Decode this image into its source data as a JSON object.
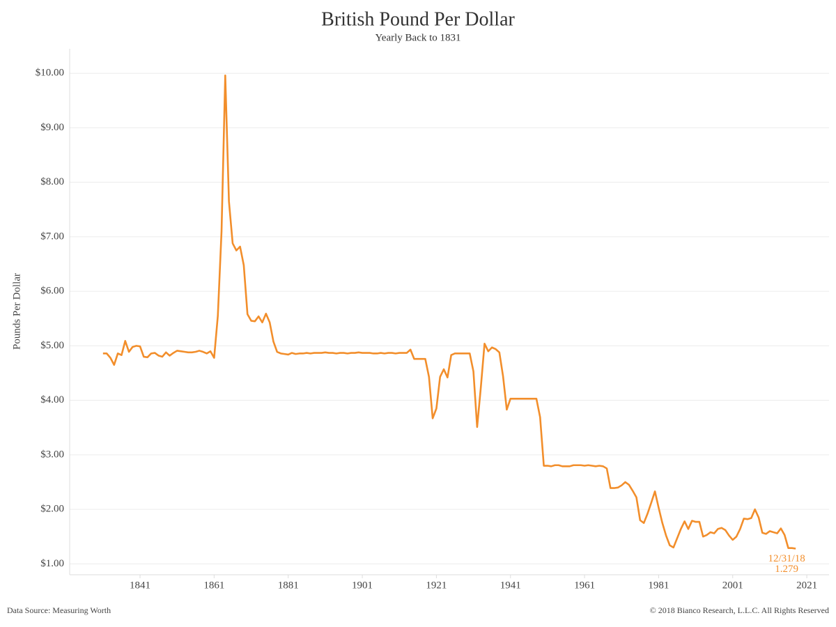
{
  "chart_data": {
    "type": "line",
    "title": "British Pound Per Dollar",
    "subtitle": "Yearly Back to 1831",
    "y_label": "Pounds Per Dollar",
    "source": "Data Source: Measuring Worth",
    "copyright": "© 2018 Bianco Research, L.L.C. All Rights Reserved",
    "annotation": {
      "date": "12/31/18",
      "value": "1.279"
    },
    "xlim": [
      1822,
      2027
    ],
    "xticks": [
      1841,
      1861,
      1881,
      1901,
      1921,
      1941,
      1961,
      1981,
      2001,
      2021
    ],
    "ylim": [
      0.8,
      10.45
    ],
    "yticks": [
      {
        "value": 1,
        "label": "$1.00"
      },
      {
        "value": 2,
        "label": "$2.00"
      },
      {
        "value": 3,
        "label": "$3.00"
      },
      {
        "value": 4,
        "label": "$4.00"
      },
      {
        "value": 5,
        "label": "$5.00"
      },
      {
        "value": 6,
        "label": "$6.00"
      },
      {
        "value": 7,
        "label": "$7.00"
      },
      {
        "value": 8,
        "label": "$8.00"
      },
      {
        "value": 9,
        "label": "$9.00"
      },
      {
        "value": 10,
        "label": "$10.00"
      }
    ],
    "grid": true,
    "x": [
      1831,
      1832,
      1833,
      1834,
      1835,
      1836,
      1837,
      1838,
      1839,
      1840,
      1841,
      1842,
      1843,
      1844,
      1845,
      1846,
      1847,
      1848,
      1849,
      1850,
      1851,
      1852,
      1853,
      1854,
      1855,
      1856,
      1857,
      1858,
      1859,
      1860,
      1861,
      1862,
      1863,
      1864,
      1865,
      1866,
      1867,
      1868,
      1869,
      1870,
      1871,
      1872,
      1873,
      1874,
      1875,
      1876,
      1877,
      1878,
      1879,
      1880,
      1881,
      1882,
      1883,
      1884,
      1885,
      1886,
      1887,
      1888,
      1889,
      1890,
      1891,
      1892,
      1893,
      1894,
      1895,
      1896,
      1897,
      1898,
      1899,
      1900,
      1901,
      1902,
      1903,
      1904,
      1905,
      1906,
      1907,
      1908,
      1909,
      1910,
      1911,
      1912,
      1913,
      1914,
      1915,
      1916,
      1917,
      1918,
      1919,
      1920,
      1921,
      1922,
      1923,
      1924,
      1925,
      1926,
      1927,
      1928,
      1929,
      1930,
      1931,
      1932,
      1933,
      1934,
      1935,
      1936,
      1937,
      1938,
      1939,
      1940,
      1941,
      1942,
      1943,
      1944,
      1945,
      1946,
      1947,
      1948,
      1949,
      1950,
      1951,
      1952,
      1953,
      1954,
      1955,
      1956,
      1957,
      1958,
      1959,
      1960,
      1961,
      1962,
      1963,
      1964,
      1965,
      1966,
      1967,
      1968,
      1969,
      1970,
      1971,
      1972,
      1973,
      1974,
      1975,
      1976,
      1977,
      1978,
      1979,
      1980,
      1981,
      1982,
      1983,
      1984,
      1985,
      1986,
      1987,
      1988,
      1989,
      1990,
      1991,
      1992,
      1993,
      1994,
      1995,
      1996,
      1997,
      1998,
      1999,
      2000,
      2001,
      2002,
      2003,
      2004,
      2005,
      2006,
      2007,
      2008,
      2009,
      2010,
      2011,
      2012,
      2013,
      2014,
      2015,
      2016,
      2017,
      2018
    ],
    "series": [
      {
        "name": "British Pound Per Dollar",
        "color": "#f28e2b",
        "values": [
          4.86,
          4.86,
          4.78,
          4.65,
          4.86,
          4.83,
          5.09,
          4.89,
          4.98,
          5.0,
          4.99,
          4.8,
          4.79,
          4.86,
          4.87,
          4.82,
          4.8,
          4.88,
          4.82,
          4.87,
          4.91,
          4.9,
          4.89,
          4.88,
          4.88,
          4.89,
          4.91,
          4.89,
          4.86,
          4.9,
          4.78,
          5.55,
          7.1,
          9.96,
          7.65,
          6.88,
          6.75,
          6.82,
          6.48,
          5.58,
          5.46,
          5.45,
          5.54,
          5.43,
          5.59,
          5.43,
          5.08,
          4.89,
          4.86,
          4.85,
          4.84,
          4.87,
          4.85,
          4.86,
          4.86,
          4.87,
          4.86,
          4.87,
          4.87,
          4.87,
          4.88,
          4.87,
          4.87,
          4.86,
          4.87,
          4.87,
          4.86,
          4.87,
          4.87,
          4.88,
          4.87,
          4.87,
          4.87,
          4.86,
          4.86,
          4.87,
          4.86,
          4.87,
          4.87,
          4.86,
          4.87,
          4.87,
          4.87,
          4.93,
          4.76,
          4.76,
          4.76,
          4.76,
          4.43,
          3.67,
          3.85,
          4.43,
          4.57,
          4.42,
          4.83,
          4.86,
          4.86,
          4.86,
          4.86,
          4.86,
          4.53,
          3.51,
          4.24,
          5.04,
          4.9,
          4.97,
          4.94,
          4.88,
          4.44,
          3.83,
          4.03,
          4.03,
          4.03,
          4.03,
          4.03,
          4.03,
          4.03,
          4.03,
          3.69,
          2.8,
          2.8,
          2.79,
          2.81,
          2.81,
          2.79,
          2.79,
          2.79,
          2.81,
          2.81,
          2.81,
          2.8,
          2.81,
          2.8,
          2.79,
          2.8,
          2.79,
          2.75,
          2.39,
          2.39,
          2.4,
          2.44,
          2.5,
          2.45,
          2.34,
          2.22,
          1.8,
          1.75,
          1.92,
          2.12,
          2.33,
          2.03,
          1.75,
          1.52,
          1.34,
          1.3,
          1.47,
          1.64,
          1.78,
          1.64,
          1.79,
          1.77,
          1.77,
          1.5,
          1.53,
          1.58,
          1.56,
          1.64,
          1.66,
          1.62,
          1.52,
          1.44,
          1.5,
          1.64,
          1.83,
          1.82,
          1.84,
          2.0,
          1.85,
          1.57,
          1.55,
          1.6,
          1.58,
          1.56,
          1.65,
          1.53,
          1.29,
          1.29,
          1.279
        ]
      }
    ]
  }
}
